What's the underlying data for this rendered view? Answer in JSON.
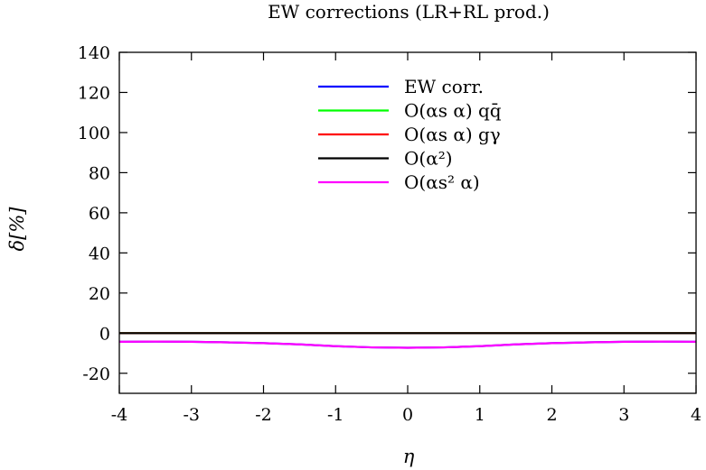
{
  "chart_data": {
    "type": "line",
    "title": "EW corrections (LR+RL prod.)",
    "xlabel": "η",
    "ylabel": "δ[%]",
    "xlim": [
      -4,
      4
    ],
    "ylim": [
      -30,
      140
    ],
    "x_ticks": [
      "-4",
      "-3",
      "-2",
      "-1",
      "0",
      "1",
      "2",
      "3",
      "4"
    ],
    "y_ticks": [
      "-20",
      "0",
      "20",
      "40",
      "60",
      "80",
      "100",
      "120",
      "140"
    ],
    "grid": false,
    "legend_position": "top-center",
    "x": [
      -4,
      -3.5,
      -3,
      -2.5,
      -2,
      -1.5,
      -1,
      -0.5,
      0,
      0.5,
      1,
      1.5,
      2,
      2.5,
      3,
      3.5,
      4
    ],
    "series": [
      {
        "name": "EW corr.",
        "color": "#0000ff",
        "values": [
          -4.3,
          -4.2,
          -4.3,
          -4.6,
          -5.0,
          -5.6,
          -6.5,
          -7.1,
          -7.3,
          -7.1,
          -6.5,
          -5.6,
          -5.0,
          -4.6,
          -4.3,
          -4.2,
          -4.3
        ]
      },
      {
        "name": "O(αs α)  qq̄",
        "color": "#00ff00",
        "values": [
          0,
          0,
          0,
          0,
          0,
          0,
          0,
          0,
          0,
          0,
          0,
          0,
          0,
          0,
          0,
          0,
          0
        ]
      },
      {
        "name": "O(αs α)  gγ",
        "color": "#ff0000",
        "values": [
          0,
          0,
          0,
          0,
          0,
          0,
          0,
          0,
          0,
          0,
          0,
          0,
          0,
          0,
          0,
          0,
          0
        ]
      },
      {
        "name": "O(α²)",
        "color": "#000000",
        "values": [
          0,
          0,
          0,
          0,
          0,
          0,
          0,
          0,
          0,
          0,
          0,
          0,
          0,
          0,
          0,
          0,
          0
        ]
      },
      {
        "name": "O(αs² α)",
        "color": "#ff00ff",
        "values": [
          -4.3,
          -4.2,
          -4.3,
          -4.6,
          -5.0,
          -5.6,
          -6.5,
          -7.1,
          -7.3,
          -7.1,
          -6.5,
          -5.6,
          -5.0,
          -4.6,
          -4.3,
          -4.2,
          -4.3
        ]
      }
    ]
  }
}
